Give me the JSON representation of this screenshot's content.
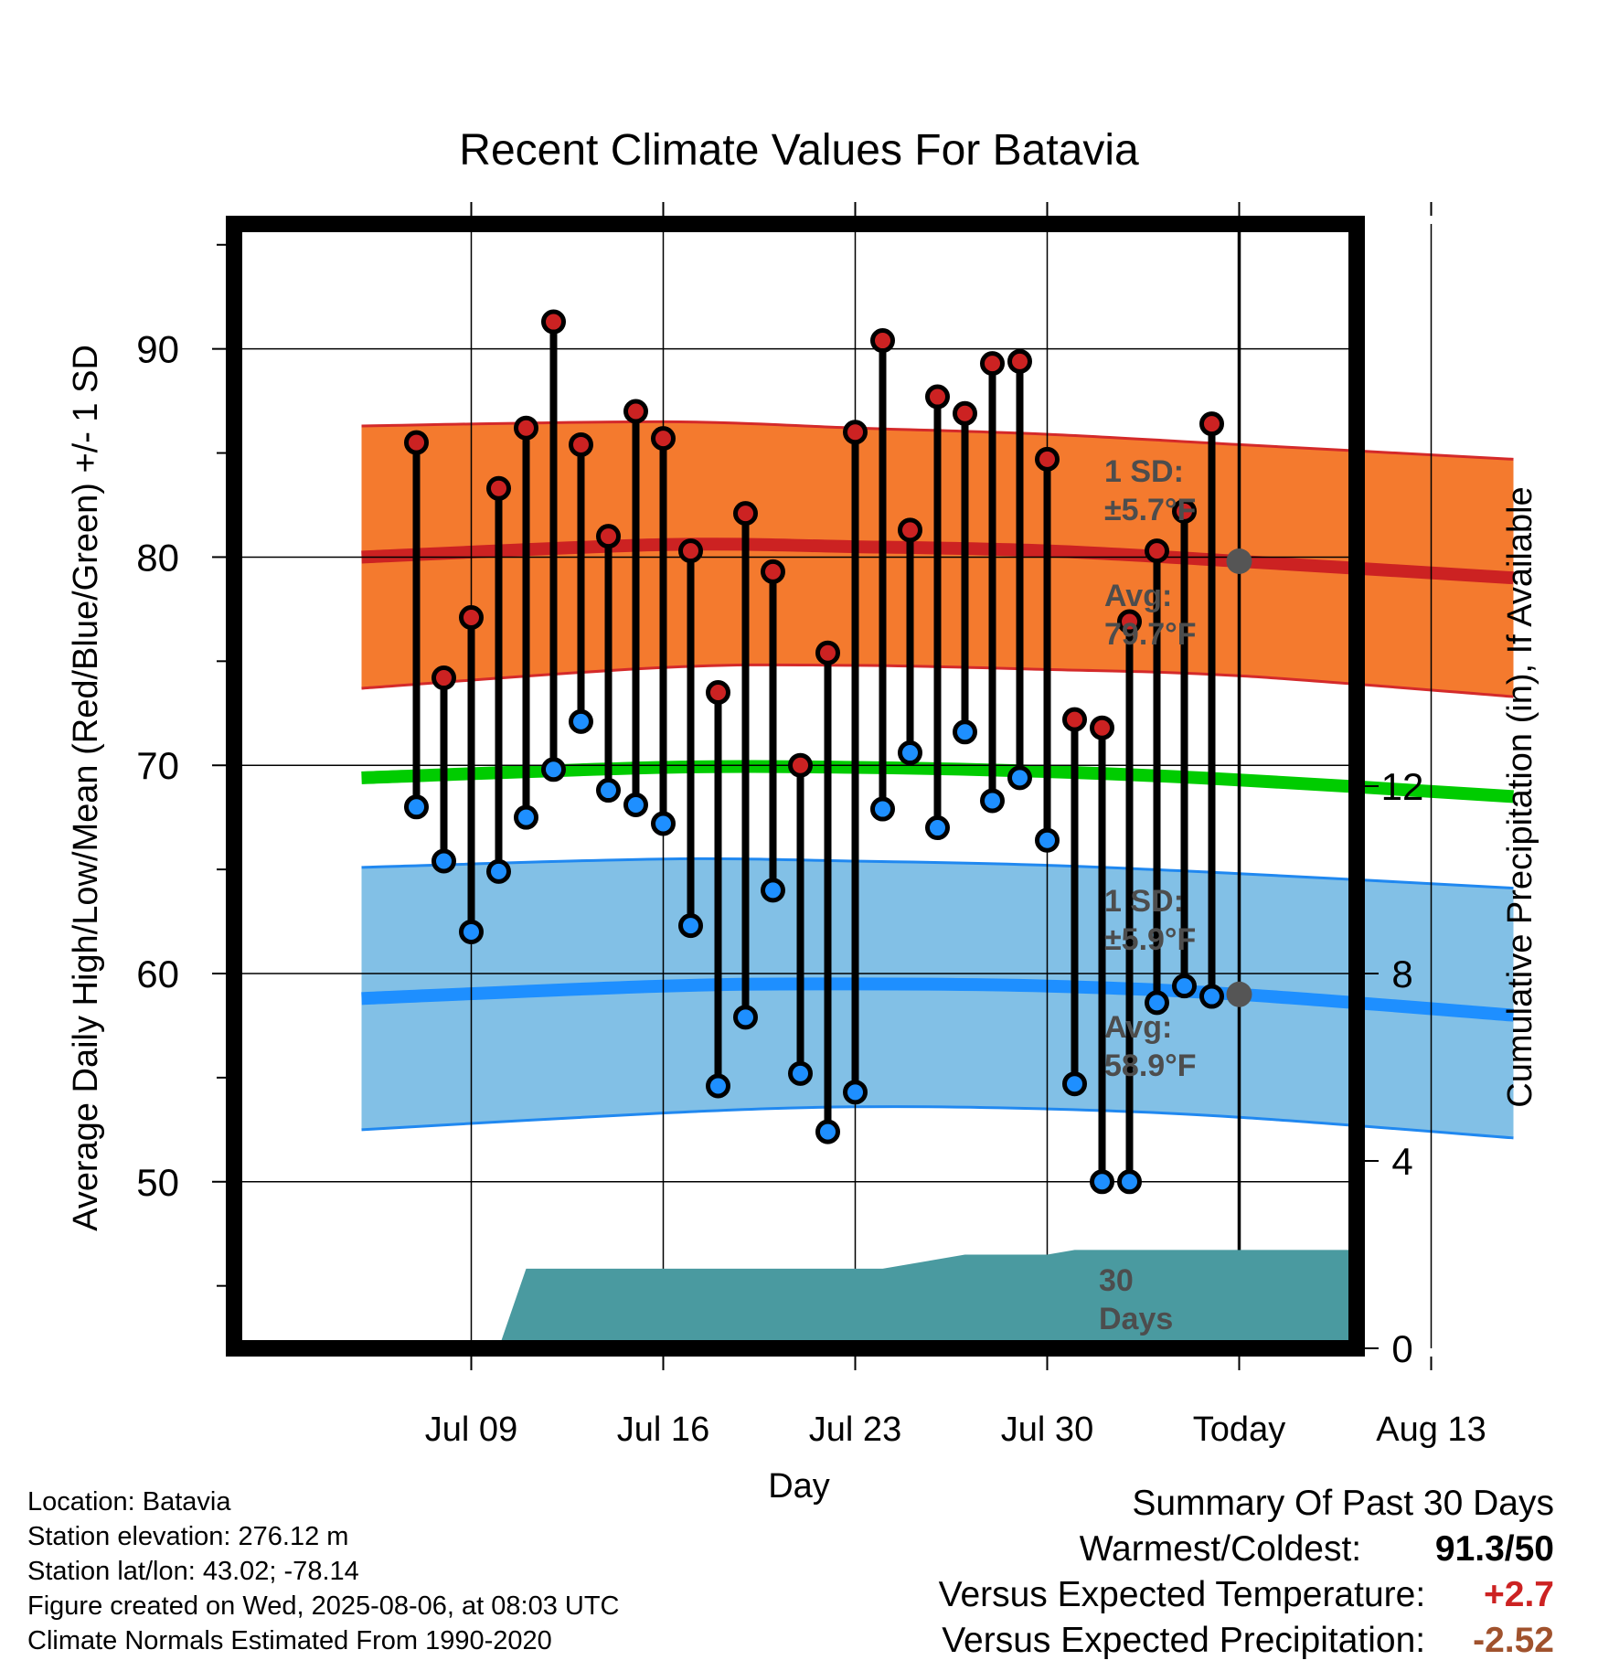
{
  "chart_data": {
    "type": "line",
    "title": "Recent Climate Values For Batavia",
    "xlabel": "Day",
    "ylabel": "Average Daily High/Low/Mean (Red/Blue/Green) +/- 1 SD",
    "y2label": "Cumulative Precipitation (in), If Available",
    "ylim": [
      42,
      96
    ],
    "y2lim": [
      0,
      24
    ],
    "y_ticks": [
      50,
      60,
      70,
      80,
      90
    ],
    "y2_ticks": [
      0,
      4,
      8,
      12
    ],
    "x_tick_labels": [
      "Jul 09",
      "Jul 16",
      "Jul 23",
      "Jul 30",
      "Today",
      "Aug 13"
    ],
    "grid": true,
    "series": [
      {
        "name": "High",
        "color": "#cc2222",
        "x": [
          "Jul 07",
          "Jul 08",
          "Jul 09",
          "Jul 10",
          "Jul 11",
          "Jul 12",
          "Jul 13",
          "Jul 14",
          "Jul 15",
          "Jul 16",
          "Jul 17",
          "Jul 18",
          "Jul 19",
          "Jul 20",
          "Jul 21",
          "Jul 22",
          "Jul 23",
          "Jul 24",
          "Jul 25",
          "Jul 26",
          "Jul 27",
          "Jul 28",
          "Jul 29",
          "Jul 30",
          "Jul 31",
          "Aug 01",
          "Aug 02",
          "Aug 03",
          "Aug 04",
          "Aug 05"
        ],
        "values": [
          85.5,
          74.2,
          77.1,
          83.3,
          86.2,
          91.3,
          85.4,
          81.0,
          87.0,
          85.7,
          80.3,
          73.5,
          82.1,
          79.3,
          70.0,
          75.4,
          86.0,
          90.4,
          81.3,
          87.7,
          86.9,
          89.3,
          89.4,
          84.7,
          72.2,
          71.8,
          76.9,
          80.3,
          82.2,
          86.4
        ]
      },
      {
        "name": "Low",
        "color": "#1e8fff",
        "x": [
          "Jul 07",
          "Jul 08",
          "Jul 09",
          "Jul 10",
          "Jul 11",
          "Jul 12",
          "Jul 13",
          "Jul 14",
          "Jul 15",
          "Jul 16",
          "Jul 17",
          "Jul 18",
          "Jul 19",
          "Jul 20",
          "Jul 21",
          "Jul 22",
          "Jul 23",
          "Jul 24",
          "Jul 25",
          "Jul 26",
          "Jul 27",
          "Jul 28",
          "Jul 29",
          "Jul 30",
          "Jul 31",
          "Aug 01",
          "Aug 02",
          "Aug 03",
          "Aug 04",
          "Aug 05"
        ],
        "values": [
          68.0,
          65.4,
          62.0,
          64.9,
          67.5,
          69.8,
          72.1,
          68.8,
          68.1,
          67.2,
          62.3,
          54.6,
          57.9,
          64.0,
          55.2,
          52.4,
          54.3,
          67.9,
          70.6,
          67.0,
          71.6,
          68.3,
          69.4,
          66.4,
          54.7,
          50.0,
          50.0,
          58.6,
          59.4,
          58.9
        ]
      },
      {
        "name": "Normal High",
        "color": "#cc2222",
        "x": [
          "Jul 05",
          "Jul 16",
          "Jul 23",
          "Jul 30",
          "Today",
          "Aug 16"
        ],
        "values": [
          80.0,
          80.6,
          80.5,
          80.3,
          79.8,
          79.0
        ]
      },
      {
        "name": "Normal High +1 SD",
        "color": "#cc2222",
        "x": [
          "Jul 05",
          "Jul 16",
          "Jul 23",
          "Jul 30",
          "Today",
          "Aug 16"
        ],
        "values": [
          86.3,
          86.5,
          86.2,
          85.9,
          85.4,
          84.7
        ]
      },
      {
        "name": "Normal High -1 SD",
        "color": "#cc2222",
        "x": [
          "Jul 05",
          "Jul 16",
          "Jul 23",
          "Jul 30",
          "Today",
          "Aug 16"
        ],
        "values": [
          73.7,
          74.7,
          74.8,
          74.6,
          74.3,
          73.3
        ]
      },
      {
        "name": "Normal Mean",
        "color": "#00cc00",
        "x": [
          "Jul 05",
          "Jul 16",
          "Jul 23",
          "Jul 30",
          "Today",
          "Aug 16"
        ],
        "values": [
          69.4,
          69.9,
          69.9,
          69.7,
          69.3,
          68.5
        ]
      },
      {
        "name": "Normal Low",
        "color": "#1e8fff",
        "x": [
          "Jul 05",
          "Jul 16",
          "Jul 23",
          "Jul 30",
          "Today",
          "Aug 16"
        ],
        "values": [
          58.8,
          59.4,
          59.5,
          59.4,
          59.0,
          58.0
        ]
      },
      {
        "name": "Normal Low +1 SD",
        "color": "#1e8fff",
        "x": [
          "Jul 05",
          "Jul 16",
          "Jul 23",
          "Jul 30",
          "Today",
          "Aug 16"
        ],
        "values": [
          65.1,
          65.5,
          65.4,
          65.2,
          64.8,
          64.1
        ]
      },
      {
        "name": "Normal Low -1 SD",
        "color": "#1e8fff",
        "x": [
          "Jul 05",
          "Jul 16",
          "Jul 23",
          "Jul 30",
          "Today",
          "Aug 16"
        ],
        "values": [
          52.5,
          53.3,
          53.6,
          53.5,
          53.1,
          52.1
        ]
      },
      {
        "name": "Cumulative Precipitation",
        "color": "#4a9aa0",
        "x": [
          "Jul 10",
          "Jul 11",
          "Jul 24",
          "Jul 27",
          "Jul 30",
          "Jul 31",
          "Aug 16"
        ],
        "values": [
          0.0,
          1.7,
          1.7,
          2.0,
          2.0,
          2.1,
          2.1
        ]
      }
    ],
    "annotations": {
      "high_sd": {
        "line1": "1 SD:",
        "line2": "±5.7°F"
      },
      "high_avg": {
        "line1": "Avg:",
        "line2": "79.7°F"
      },
      "low_sd": {
        "line1": "1 SD:",
        "line2": "±5.9°F"
      },
      "low_avg": {
        "line1": "Avg:",
        "line2": "58.9°F"
      },
      "days": {
        "line1": "30",
        "line2": "Days"
      }
    }
  },
  "info": {
    "location": "Location: Batavia",
    "elevation": "Station elevation: 276.12 m",
    "latlon": "Station lat/lon: 43.02; -78.14",
    "created": "Figure created on Wed, 2025-08-06, at 08:03 UTC",
    "normals": "Climate Normals Estimated From 1990-2020"
  },
  "summary": {
    "title": "Summary Of Past 30 Days",
    "warmest_label": "Warmest/Coldest:",
    "warmest_value": "91.3/50",
    "temp_label": "Versus Expected Temperature:",
    "temp_value": "+2.7",
    "temp_color": "#cc2222",
    "precip_label": "Versus Expected Precipitation:",
    "precip_value": "-2.52",
    "precip_color": "#a0522d"
  }
}
